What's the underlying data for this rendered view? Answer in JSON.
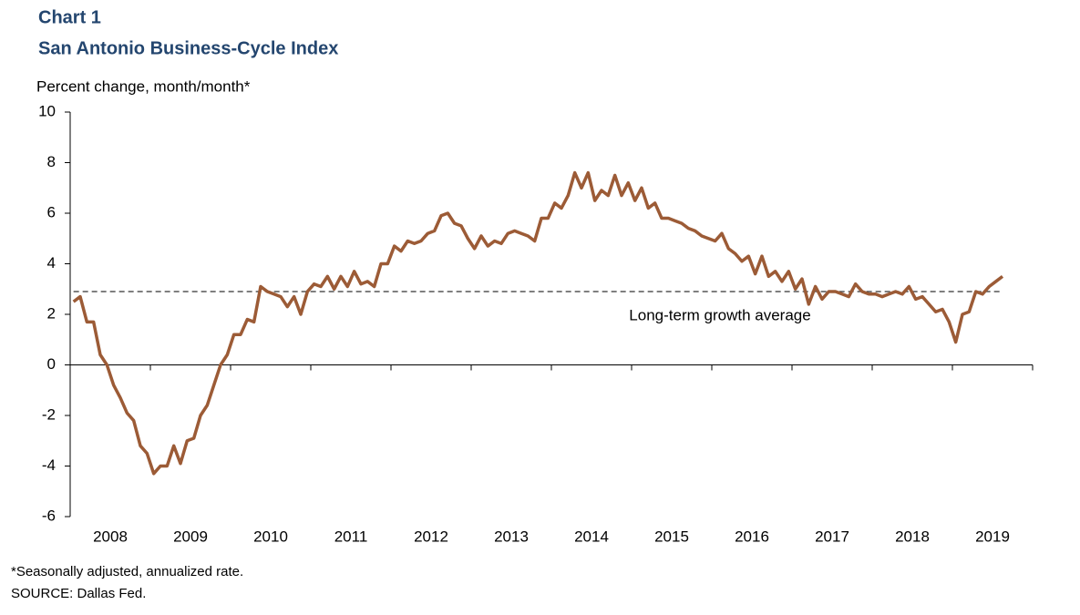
{
  "chart_data": {
    "type": "line",
    "title": "Chart 1",
    "subtitle": "San Antonio Business-Cycle Index",
    "y_label": "Percent change, month/month*",
    "notes": [
      "*Seasonally adjusted, annualized rate.",
      "SOURCE:  Dallas Fed."
    ],
    "categories": [
      null,
      null,
      null,
      null,
      null,
      null,
      "2008",
      null,
      null,
      null,
      null,
      null,
      null,
      null,
      null,
      null,
      null,
      null,
      "2009",
      null,
      null,
      null,
      null,
      null,
      null,
      null,
      null,
      null,
      null,
      null,
      "2010",
      null,
      null,
      null,
      null,
      null,
      null,
      null,
      null,
      null,
      null,
      null,
      "2011",
      null,
      null,
      null,
      null,
      null,
      null,
      null,
      null,
      null,
      null,
      null,
      "2012",
      null,
      null,
      null,
      null,
      null,
      null,
      null,
      null,
      null,
      null,
      null,
      "2013",
      null,
      null,
      null,
      null,
      null,
      null,
      null,
      null,
      null,
      null,
      null,
      "2014",
      null,
      null,
      null,
      null,
      null,
      null,
      null,
      null,
      null,
      null,
      null,
      "2015",
      null,
      null,
      null,
      null,
      null,
      null,
      null,
      null,
      null,
      null,
      null,
      "2016",
      null,
      null,
      null,
      null,
      null,
      null,
      null,
      null,
      null,
      null,
      null,
      "2017",
      null,
      null,
      null,
      null,
      null,
      null,
      null,
      null,
      null,
      null,
      null,
      "2018",
      null,
      null,
      null,
      null,
      null,
      null,
      null,
      null,
      null,
      null,
      null,
      "2019",
      null
    ],
    "series": [
      {
        "name": "San Antonio Business-Cycle Index",
        "color": "#9c5b36",
        "values": [
          2.5,
          2.7,
          1.7,
          1.7,
          0.4,
          0.0,
          -0.8,
          -1.3,
          -1.9,
          -2.2,
          -3.2,
          -3.5,
          -4.3,
          -4.0,
          -4.0,
          -3.2,
          -3.9,
          -3.0,
          -2.9,
          -2.0,
          -1.6,
          -0.8,
          0.0,
          0.4,
          1.2,
          1.2,
          1.8,
          1.7,
          3.1,
          2.9,
          2.8,
          2.7,
          2.3,
          2.7,
          2.0,
          2.9,
          3.2,
          3.1,
          3.5,
          3.0,
          3.5,
          3.1,
          3.7,
          3.2,
          3.3,
          3.1,
          4.0,
          4.0,
          4.7,
          4.5,
          4.9,
          4.8,
          4.9,
          5.2,
          5.3,
          5.9,
          6.0,
          5.6,
          5.5,
          5.0,
          4.6,
          5.1,
          4.7,
          4.9,
          4.8,
          5.2,
          5.3,
          5.2,
          5.1,
          4.9,
          5.8,
          5.8,
          6.4,
          6.2,
          6.7,
          7.6,
          7.0,
          7.6,
          6.5,
          6.9,
          6.7,
          7.5,
          6.7,
          7.2,
          6.5,
          7.0,
          6.2,
          6.4,
          5.8,
          5.8,
          5.7,
          5.6,
          5.4,
          5.3,
          5.1,
          5.0,
          4.9,
          5.2,
          4.6,
          4.4,
          4.1,
          4.3,
          3.6,
          4.3,
          3.5,
          3.7,
          3.3,
          3.7,
          3.0,
          3.4,
          2.4,
          3.1,
          2.6,
          2.9,
          2.9,
          2.8,
          2.7,
          3.2,
          2.9,
          2.8,
          2.8,
          2.7,
          2.8,
          2.9,
          2.8,
          3.1,
          2.6,
          2.7,
          2.4,
          2.1,
          2.2,
          1.7,
          0.9,
          2.0,
          2.1,
          2.9,
          2.8,
          3.1,
          3.3,
          3.5
        ]
      }
    ],
    "reference_line": {
      "value": 2.9,
      "label": "Long-term growth average"
    },
    "ylim": [
      -6,
      10
    ],
    "yticks": [
      -6,
      -4,
      -2,
      0,
      2,
      4,
      6,
      8,
      10
    ]
  }
}
